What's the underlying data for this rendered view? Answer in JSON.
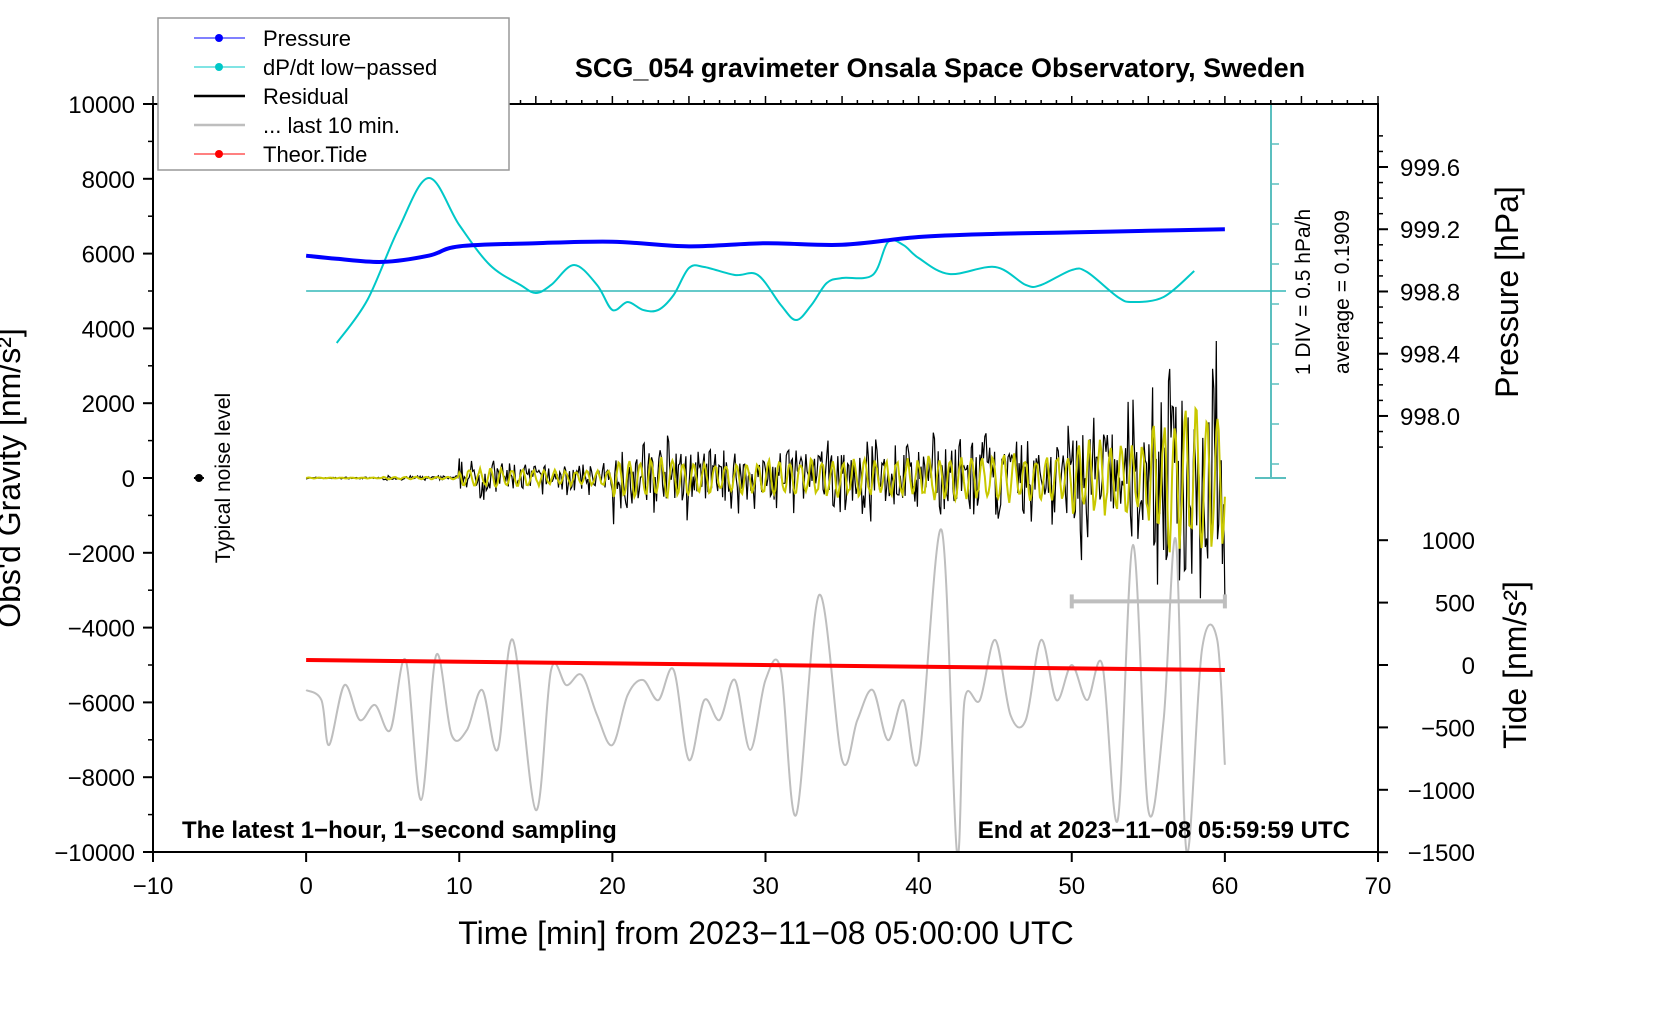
{
  "chart_data": {
    "type": "line",
    "title": "SCG_054 gravimeter Onsala Space Observatory, Sweden",
    "xlabel": "Time [min] from 2023−11−08 05:00:00 UTC",
    "ylabel_left": "Obs'd Gravity [nm/s²]",
    "ylabel_right_pressure": "Pressure [hPa]",
    "ylabel_right_tide": "Tide [nm/s²]",
    "xlim": [
      -10,
      70
    ],
    "ylim_left": [
      -10000,
      10000
    ],
    "ylim_pressure": [
      997.6,
      999.9
    ],
    "ylim_tide": [
      -1500,
      1500
    ],
    "x_ticks": [
      "−10",
      "0",
      "10",
      "20",
      "30",
      "40",
      "50",
      "60",
      "70"
    ],
    "x_tick_values": [
      -10,
      0,
      10,
      20,
      30,
      40,
      50,
      60,
      70
    ],
    "y_ticks_left": [
      "10000",
      "8000",
      "6000",
      "4000",
      "2000",
      "0",
      "−2000",
      "−4000",
      "−6000",
      "−8000",
      "−10000"
    ],
    "y_tick_values_left": [
      10000,
      8000,
      6000,
      4000,
      2000,
      0,
      -2000,
      -4000,
      -6000,
      -8000,
      -10000
    ],
    "y_ticks_pressure": [
      "999.6",
      "999.2",
      "998.8",
      "998.4",
      "998.0"
    ],
    "y_tick_values_pressure": [
      999.6,
      999.2,
      998.8,
      998.4,
      998.0
    ],
    "y_ticks_tide": [
      "1000",
      "500",
      "0",
      "−500",
      "−1000",
      "−1500"
    ],
    "y_tick_values_tide": [
      1000,
      500,
      0,
      -500,
      -1000,
      -1500
    ],
    "legend": {
      "placement": "top-left",
      "entries": [
        {
          "label": "Pressure",
          "color": "#0000ff",
          "marker": true
        },
        {
          "label": "dP/dt low−passed",
          "color": "#00c8c8",
          "marker": true
        },
        {
          "label": "Residual",
          "color": "#000000",
          "marker": false
        },
        {
          "label": "... last 10 min.",
          "color": "#bebebe",
          "marker": false
        },
        {
          "label": "Theor.Tide",
          "color": "#ff0000",
          "marker": true
        }
      ]
    },
    "annotations": {
      "bottom_left": "The latest 1−hour, 1−second sampling",
      "bottom_right": "End at 2023−11−08 05:59:59 UTC",
      "noise_label": "Typical noise level",
      "noise_marker_x": -7,
      "dpdt_scale": "1 DIV = 0.5 hPa/h",
      "dpdt_average": "average = 0.1909",
      "last10_bar_range": [
        50,
        60
      ],
      "last10_bar_level": -3300
    },
    "series": [
      {
        "name": "Pressure",
        "axis": "pressure",
        "color": "#0000ff",
        "points": [
          [
            0,
            999.03
          ],
          [
            2,
            999.01
          ],
          [
            5,
            998.99
          ],
          [
            8,
            999.03
          ],
          [
            10,
            999.09
          ],
          [
            15,
            999.11
          ],
          [
            20,
            999.12
          ],
          [
            25,
            999.09
          ],
          [
            30,
            999.11
          ],
          [
            35,
            999.1
          ],
          [
            40,
            999.15
          ],
          [
            45,
            999.17
          ],
          [
            50,
            999.18
          ],
          [
            55,
            999.19
          ],
          [
            60,
            999.2
          ]
        ]
      },
      {
        "name": "dP/dt low-passed",
        "axis": "dpdt",
        "unit": "hPa/h",
        "baseline": 0.1909,
        "color": "#00c8c8",
        "points": [
          [
            2,
            -0.459
          ],
          [
            4,
            0.078
          ],
          [
            6,
            0.953
          ],
          [
            8,
            1.603
          ],
          [
            10,
            1.016
          ],
          [
            12,
            0.516
          ],
          [
            14,
            0.266
          ],
          [
            15,
            0.166
          ],
          [
            16,
            0.266
          ],
          [
            17.5,
            0.516
          ],
          [
            19,
            0.266
          ],
          [
            20,
            -0.046
          ],
          [
            21,
            0.053
          ],
          [
            22,
            -0.046
          ],
          [
            23,
            -0.046
          ],
          [
            24,
            0.141
          ],
          [
            25,
            0.478
          ],
          [
            26,
            0.491
          ],
          [
            28,
            0.391
          ],
          [
            29.5,
            0.391
          ],
          [
            31,
            0.016
          ],
          [
            32,
            -0.172
          ],
          [
            33,
            0.016
          ],
          [
            34,
            0.291
          ],
          [
            35,
            0.353
          ],
          [
            37,
            0.391
          ],
          [
            38,
            0.803
          ],
          [
            39,
            0.766
          ],
          [
            40,
            0.603
          ],
          [
            42,
            0.403
          ],
          [
            45,
            0.491
          ],
          [
            47,
            0.266
          ],
          [
            48,
            0.266
          ],
          [
            50,
            0.453
          ],
          [
            51,
            0.428
          ],
          [
            53,
            0.116
          ],
          [
            54,
            0.053
          ],
          [
            56,
            0.116
          ],
          [
            58,
            0.441
          ]
        ]
      },
      {
        "name": "Residual",
        "axis": "left",
        "color": "#000000",
        "filtered_color": "#c8c800",
        "envelope_by_5min": [
          30,
          80,
          600,
          500,
          1300,
          1000,
          1200,
          1200,
          1400,
          1500,
          2400,
          3500
        ]
      },
      {
        "name": "... last 10 min.",
        "axis": "left",
        "color": "#bebebe",
        "points": [
          [
            0,
            -5670
          ],
          [
            1,
            -5940
          ],
          [
            1.5,
            -7140
          ],
          [
            2.5,
            -5540
          ],
          [
            3.5,
            -6470
          ],
          [
            4.5,
            -6070
          ],
          [
            5.5,
            -6740
          ],
          [
            6.5,
            -4870
          ],
          [
            7.5,
            -8610
          ],
          [
            8.5,
            -4730
          ],
          [
            9.5,
            -6870
          ],
          [
            10.5,
            -6740
          ],
          [
            11.5,
            -5670
          ],
          [
            12.5,
            -7270
          ],
          [
            13.5,
            -4330
          ],
          [
            15,
            -8880
          ],
          [
            16,
            -5130
          ],
          [
            17,
            -5540
          ],
          [
            18,
            -5270
          ],
          [
            19,
            -6340
          ],
          [
            20,
            -7140
          ],
          [
            21,
            -5800
          ],
          [
            22,
            -5400
          ],
          [
            23,
            -5940
          ],
          [
            24,
            -5130
          ],
          [
            25,
            -7540
          ],
          [
            26,
            -5940
          ],
          [
            27,
            -6470
          ],
          [
            28,
            -5400
          ],
          [
            29,
            -7270
          ],
          [
            30,
            -5400
          ],
          [
            31,
            -5130
          ],
          [
            32,
            -9010
          ],
          [
            33.5,
            -3130
          ],
          [
            35,
            -7540
          ],
          [
            36,
            -6470
          ],
          [
            37,
            -5670
          ],
          [
            38,
            -7010
          ],
          [
            39,
            -5940
          ],
          [
            40,
            -7540
          ],
          [
            41.5,
            -1390
          ],
          [
            42.5,
            -10000
          ],
          [
            43,
            -5940
          ],
          [
            44,
            -5940
          ],
          [
            45,
            -4330
          ],
          [
            46,
            -6340
          ],
          [
            47,
            -6470
          ],
          [
            48,
            -4330
          ],
          [
            49,
            -5940
          ],
          [
            50,
            -5000
          ],
          [
            51,
            -5940
          ],
          [
            52,
            -5000
          ],
          [
            53,
            -9150
          ],
          [
            54,
            -1790
          ],
          [
            55,
            -8880
          ],
          [
            56,
            -6470
          ],
          [
            56.8,
            -1660
          ],
          [
            57.5,
            -10000
          ],
          [
            58.5,
            -4600
          ],
          [
            59.5,
            -4330
          ],
          [
            60,
            -7670
          ]
        ]
      },
      {
        "name": "Theor.Tide",
        "axis": "tide",
        "color": "#ff0000",
        "points": [
          [
            0,
            40
          ],
          [
            60,
            -40
          ]
        ]
      }
    ]
  }
}
